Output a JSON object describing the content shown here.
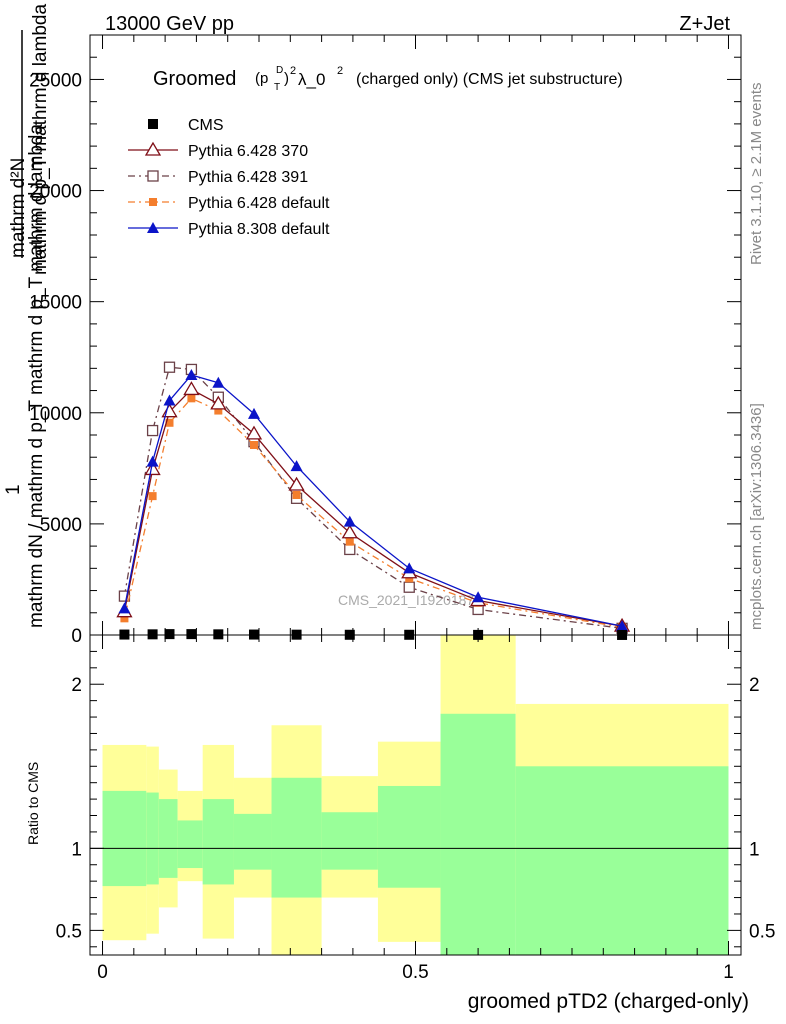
{
  "header": {
    "left": "13000 GeV pp",
    "right": "Z+Jet"
  },
  "side_labels": {
    "rivet": "Rivet 3.1.10, ≥ 2.1M events",
    "mcplots": "mcplots.cern.ch [arXiv:1306.3436]"
  },
  "title": {
    "prefix": "Groomed",
    "ptd_base": "(p",
    "ptd_sub": "T",
    "ptd_sup": "D",
    "ptd_close": ")",
    "exp": "2",
    "lambda": "λ_0",
    "lambda_exp": "2",
    "suffix": "(charged only) (CMS jet substructure)"
  },
  "watermark": "CMS_2021_I1920187",
  "ylabel_main": {
    "numerator": "mathrm d²N",
    "numerator2": "1",
    "denominator": "mathrm dN / mathrm d p_T mathrm d p_T mathrm d lambda",
    "lines": [
      "mathrm d²N",
      "mathrm d p_T mathrm d lambda",
      "1",
      "mathrm dN / mathrm d p_T mathrm d p_T mathrm d lambda"
    ]
  },
  "ylabel_ratio": "Ratio to CMS",
  "xlabel": "groomed pTD2 (charged-only)",
  "colors": {
    "band_inner": "#99ff99",
    "band_outer": "#ffff99",
    "cms": "#000000",
    "p370": "#7f0f17",
    "p391": "#6b4148",
    "pdef": "#f47e2d",
    "p8": "#0b14c8"
  },
  "chart_data": {
    "type": "line",
    "main": {
      "xlim": [
        -0.02,
        1.02
      ],
      "ylim": [
        0,
        27000
      ],
      "yticks": [
        0,
        5000,
        10000,
        15000,
        20000,
        25000
      ],
      "ytick_labels": [
        "0",
        "5000",
        "10000",
        "15000",
        "20000",
        "25000"
      ],
      "x": [
        0.035,
        0.08,
        0.107,
        0.142,
        0.185,
        0.242,
        0.31,
        0.395,
        0.49,
        0.6,
        0.83
      ],
      "series": [
        {
          "name": "CMS",
          "marker": "square-filled",
          "values": [
            20,
            30,
            40,
            40,
            30,
            20,
            15,
            10,
            10,
            5,
            2
          ]
        },
        {
          "name": "Pythia 6.428 370",
          "marker": "triangle-open",
          "style": "solid",
          "values": [
            1050,
            7450,
            10050,
            11050,
            10400,
            9050,
            6750,
            4600,
            2800,
            1550,
            400
          ]
        },
        {
          "name": "Pythia 6.428 391",
          "marker": "square-open",
          "style": "dashdot",
          "values": [
            1750,
            9200,
            12050,
            11950,
            10700,
            8700,
            6150,
            3850,
            2150,
            1150,
            300
          ]
        },
        {
          "name": "Pythia 6.428 default",
          "marker": "square-filled-small",
          "style": "dashdot",
          "values": [
            750,
            6250,
            9550,
            10650,
            10100,
            8550,
            6300,
            4200,
            2550,
            1450,
            350
          ]
        },
        {
          "name": "Pythia 8.308 default",
          "marker": "triangle-filled",
          "style": "solid",
          "values": [
            1200,
            7800,
            10550,
            11700,
            11350,
            9950,
            7600,
            5100,
            3000,
            1700,
            400
          ]
        }
      ]
    },
    "ratio": {
      "ylim": [
        0.35,
        2.3
      ],
      "yticks": [
        0.5,
        1,
        2
      ],
      "ytick_labels": [
        "0.5",
        "1",
        "2"
      ],
      "reference": 1,
      "bins": [
        {
          "x0": 0.0,
          "x1": 0.07,
          "inner": [
            0.77,
            1.35
          ],
          "outer": [
            0.44,
            1.63
          ]
        },
        {
          "x0": 0.07,
          "x1": 0.09,
          "inner": [
            0.78,
            1.34
          ],
          "outer": [
            0.48,
            1.62
          ]
        },
        {
          "x0": 0.09,
          "x1": 0.12,
          "inner": [
            0.82,
            1.3
          ],
          "outer": [
            0.64,
            1.48
          ]
        },
        {
          "x0": 0.12,
          "x1": 0.16,
          "inner": [
            0.88,
            1.17
          ],
          "outer": [
            0.8,
            1.35
          ]
        },
        {
          "x0": 0.16,
          "x1": 0.21,
          "inner": [
            0.78,
            1.3
          ],
          "outer": [
            0.45,
            1.63
          ]
        },
        {
          "x0": 0.21,
          "x1": 0.27,
          "inner": [
            0.87,
            1.21
          ],
          "outer": [
            0.7,
            1.43
          ]
        },
        {
          "x0": 0.27,
          "x1": 0.35,
          "inner": [
            0.7,
            1.43
          ],
          "outer": [
            0.35,
            1.75
          ]
        },
        {
          "x0": 0.35,
          "x1": 0.44,
          "inner": [
            0.87,
            1.22
          ],
          "outer": [
            0.7,
            1.44
          ]
        },
        {
          "x0": 0.44,
          "x1": 0.54,
          "inner": [
            0.76,
            1.38
          ],
          "outer": [
            0.43,
            1.65
          ]
        },
        {
          "x0": 0.54,
          "x1": 0.66,
          "inner": [
            0.35,
            1.82
          ],
          "outer": [
            0.35,
            2.3
          ]
        },
        {
          "x0": 0.66,
          "x1": 1.0,
          "inner": [
            0.35,
            1.5
          ],
          "outer": [
            0.61,
            1.88
          ]
        }
      ]
    },
    "xticks": [
      0,
      0.5,
      1
    ],
    "xtick_labels": [
      "0",
      "0.5",
      "1"
    ],
    "legend_position": "top-left",
    "grid": false
  }
}
